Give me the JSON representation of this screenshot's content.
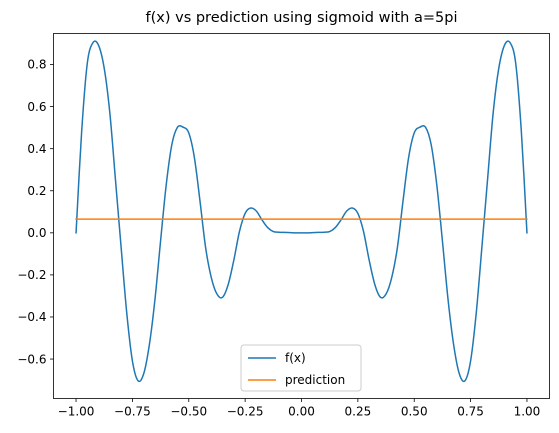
{
  "chart_data": {
    "type": "line",
    "title": "f(x) vs prediction using sigmoid with a=5pi",
    "xlabel": "",
    "ylabel": "",
    "xlim": [
      -1.1,
      1.1
    ],
    "ylim": [
      -0.7875,
      0.9475
    ],
    "x_ticks": [
      -1.0,
      -0.75,
      -0.5,
      -0.25,
      0.0,
      0.25,
      0.5,
      0.75,
      1.0
    ],
    "x_tick_labels": [
      "−1.00",
      "−0.75",
      "−0.50",
      "−0.25",
      "0.00",
      "0.25",
      "0.50",
      "0.75",
      "1.00"
    ],
    "y_ticks": [
      -0.6,
      -0.4,
      -0.2,
      0.0,
      0.2,
      0.4,
      0.6,
      0.8
    ],
    "y_tick_labels": [
      "−0.6",
      "−0.4",
      "−0.2",
      "0.0",
      "0.2",
      "0.4",
      "0.6",
      "0.8"
    ],
    "grid": false,
    "legend_position": "lower-center",
    "series": [
      {
        "name": "f(x)",
        "color": "#1f77b4",
        "x": [
          -1.0,
          -0.975,
          -0.95,
          -0.925,
          -0.9,
          -0.875,
          -0.85,
          -0.825,
          -0.8,
          -0.775,
          -0.75,
          -0.725,
          -0.7,
          -0.675,
          -0.65,
          -0.625,
          -0.6,
          -0.575,
          -0.55,
          -0.525,
          -0.5,
          -0.475,
          -0.45,
          -0.425,
          -0.4,
          -0.375,
          -0.35,
          -0.325,
          -0.3,
          -0.275,
          -0.25,
          -0.225,
          -0.2,
          -0.175,
          -0.15,
          -0.125,
          -0.1,
          -0.075,
          -0.05,
          -0.025,
          0.0,
          0.025,
          0.05,
          0.075,
          0.1,
          0.125,
          0.15,
          0.175,
          0.2,
          0.225,
          0.25,
          0.275,
          0.3,
          0.325,
          0.35,
          0.375,
          0.4,
          0.425,
          0.45,
          0.475,
          0.5,
          0.525,
          0.55,
          0.575,
          0.6,
          0.625,
          0.65,
          0.675,
          0.7,
          0.725,
          0.75,
          0.775,
          0.8,
          0.825,
          0.85,
          0.875,
          0.9,
          0.925,
          0.95,
          0.975,
          1.0
        ],
        "y": [
          0.0,
          0.483,
          0.807,
          0.904,
          0.891,
          0.782,
          0.569,
          0.25,
          -0.07,
          -0.382,
          -0.609,
          -0.703,
          -0.67,
          -0.533,
          -0.317,
          -0.038,
          0.229,
          0.42,
          0.502,
          0.502,
          0.475,
          0.357,
          0.149,
          -0.072,
          -0.213,
          -0.291,
          -0.306,
          -0.245,
          -0.129,
          0.007,
          0.093,
          0.118,
          0.103,
          0.061,
          0.025,
          0.006,
          0.003,
          0.002,
          0.001,
          0.0,
          0.0,
          0.0,
          0.001,
          0.002,
          0.003,
          0.006,
          0.025,
          0.061,
          0.103,
          0.118,
          0.093,
          0.007,
          -0.129,
          -0.245,
          -0.306,
          -0.291,
          -0.213,
          -0.072,
          0.149,
          0.357,
          0.475,
          0.502,
          0.502,
          0.42,
          0.229,
          -0.038,
          -0.317,
          -0.533,
          -0.67,
          -0.703,
          -0.609,
          -0.382,
          -0.07,
          0.25,
          0.569,
          0.782,
          0.891,
          0.904,
          0.807,
          0.483,
          0.0
        ]
      },
      {
        "name": "prediction",
        "color": "#ff7f0e",
        "x": [
          -1.0,
          1.0
        ],
        "y": [
          0.065,
          0.065
        ]
      }
    ]
  }
}
